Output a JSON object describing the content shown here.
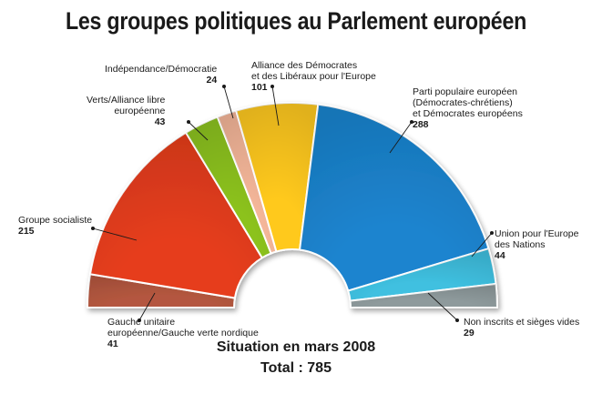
{
  "title": "Les groupes politiques au Parlement européen",
  "situation": "Situation en mars 2008",
  "total": "Total : 785",
  "chart_data": {
    "type": "pie",
    "variant": "semicircle",
    "total": 785,
    "series": [
      {
        "label_lines": [
          "Gauche unitaire",
          "européenne/Gauche verte nordique"
        ],
        "value": 41,
        "color": "#b4573f"
      },
      {
        "label_lines": [
          "Groupe socialiste"
        ],
        "value": 215,
        "color": "#e63d1c"
      },
      {
        "label_lines": [
          "Verts/Alliance libre",
          "européenne"
        ],
        "value": 43,
        "color": "#8cc21d"
      },
      {
        "label_lines": [
          "Indépendance/Démocratie"
        ],
        "value": 24,
        "color": "#f4b699"
      },
      {
        "label_lines": [
          "Alliance des Démocrates",
          "et des Libéraux pour l'Europe"
        ],
        "value": 101,
        "color": "#ffc91e"
      },
      {
        "label_lines": [
          "Parti populaire européen",
          "(Démocrates-chrétiens)",
          "et Démocrates européens"
        ],
        "value": 288,
        "color": "#1b84cf"
      },
      {
        "label_lines": [
          "Union pour l'Europe",
          "des Nations"
        ],
        "value": 44,
        "color": "#3fc0e0"
      },
      {
        "label_lines": [
          "Non inscrits et sièges vides"
        ],
        "value": 29,
        "color": "#8e9a9c"
      }
    ]
  }
}
